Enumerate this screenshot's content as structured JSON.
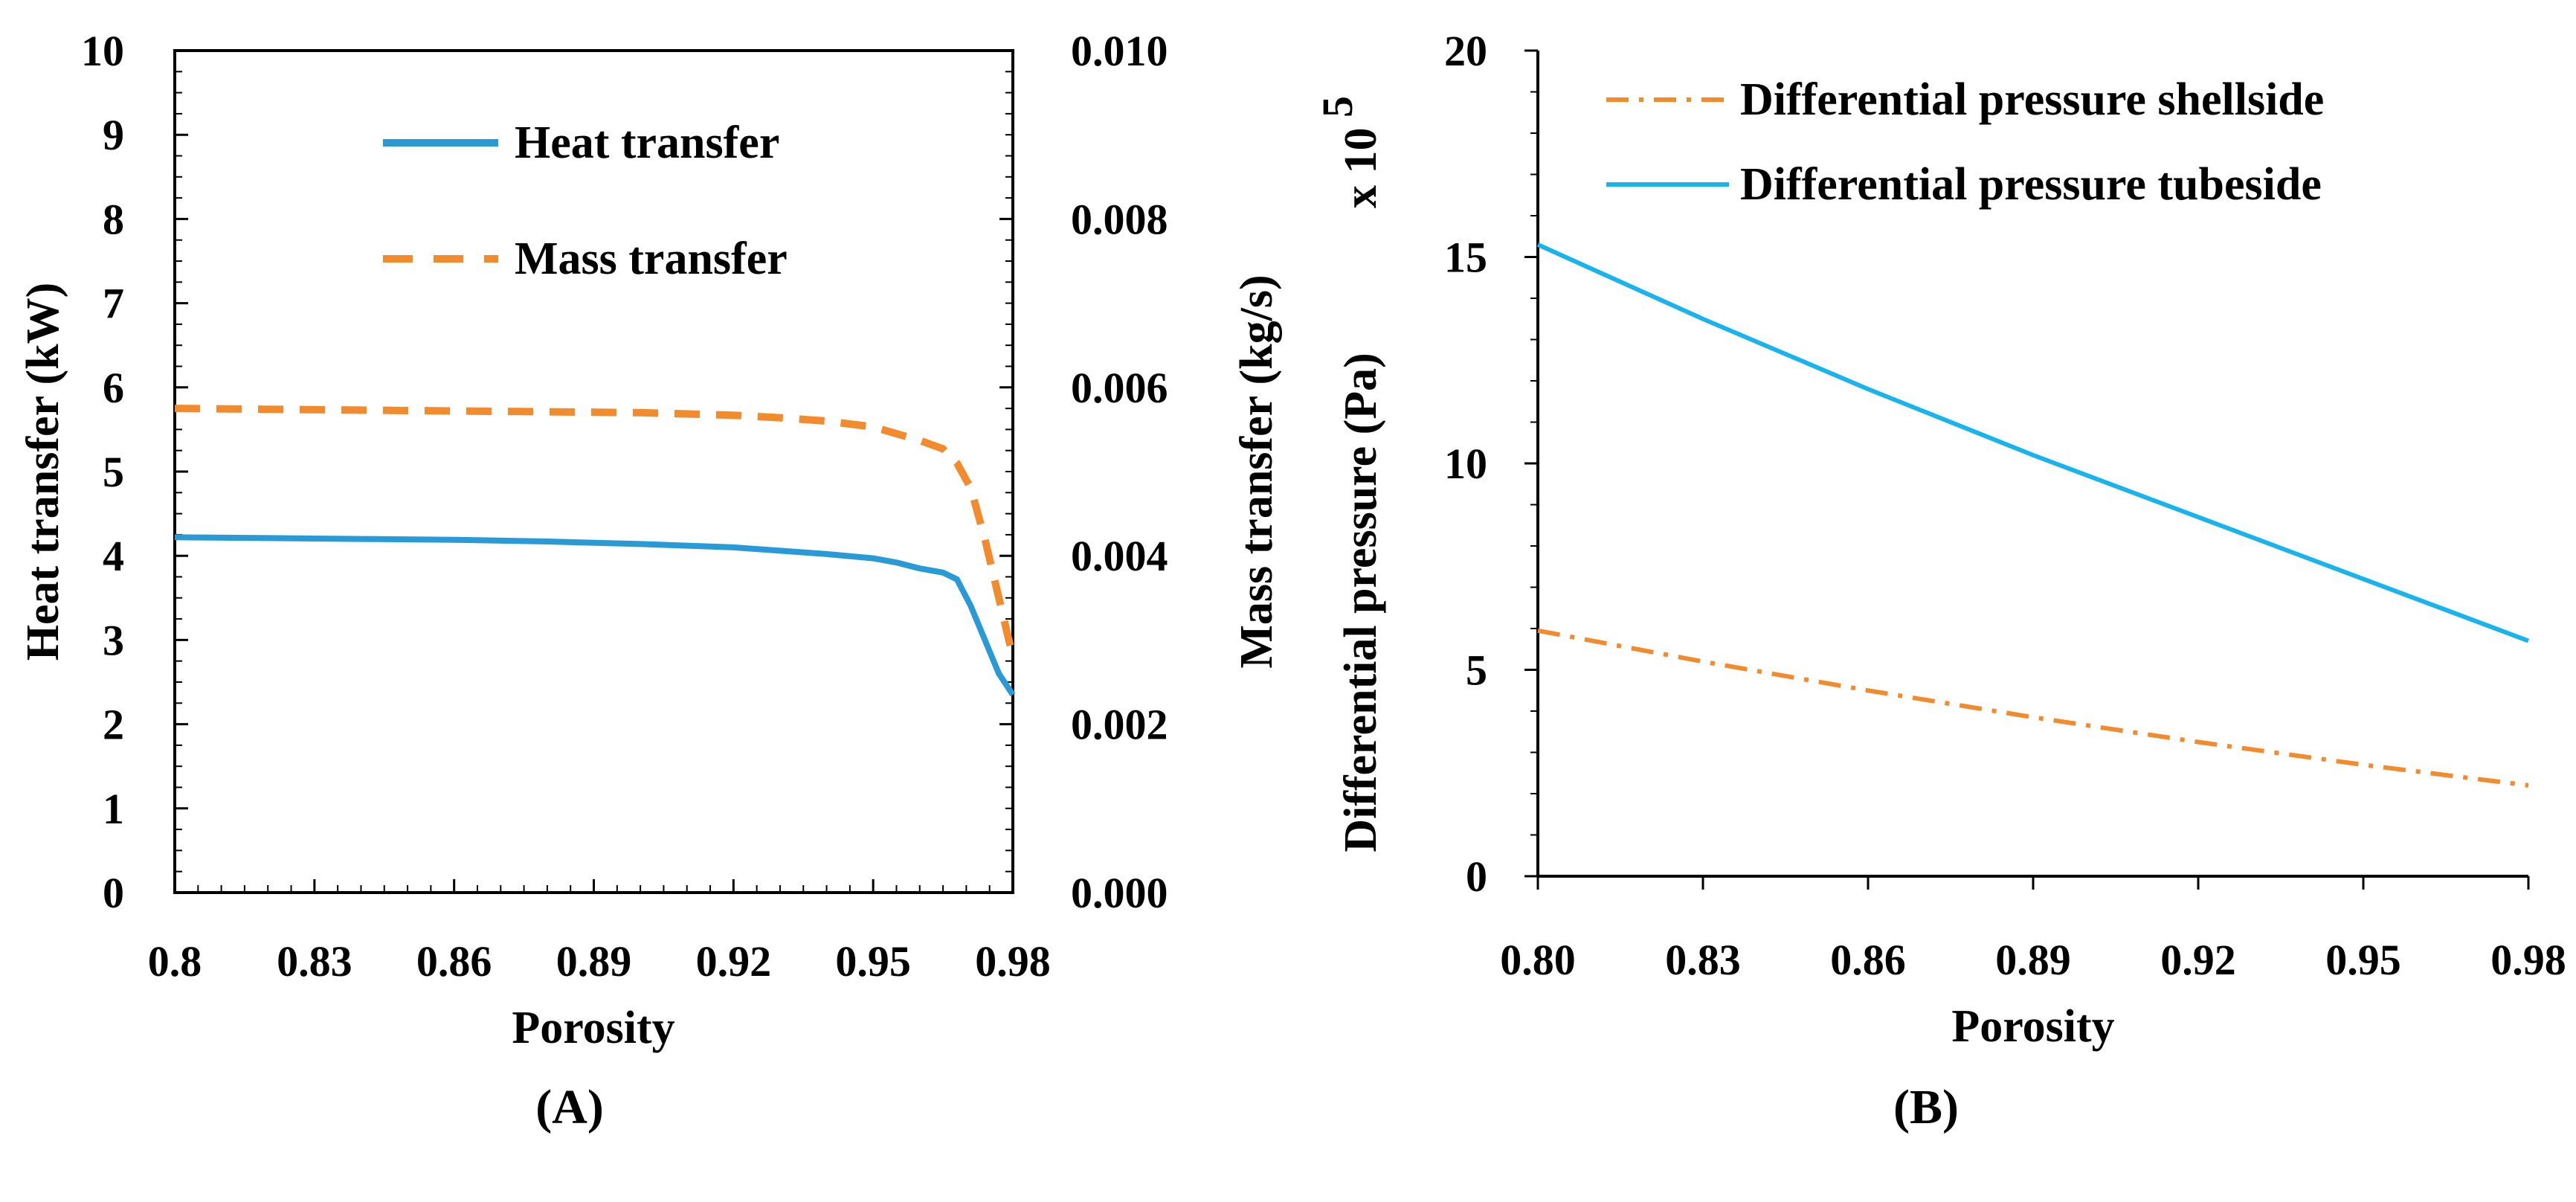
{
  "chart_data": [
    {
      "type": "line",
      "panel_label": "(A)",
      "xlabel": "Porosity",
      "ylabel": "Heat transfer (kW)",
      "y2label": "Mass transfer (kg/s)",
      "xlim": [
        0.8,
        0.98
      ],
      "ylim": [
        0,
        10
      ],
      "y2lim": [
        0,
        0.01
      ],
      "xticks": [
        0.8,
        0.83,
        0.86,
        0.89,
        0.92,
        0.95,
        0.98
      ],
      "xtick_labels": [
        "0.8",
        "0.83",
        "0.86",
        "0.89",
        "0.92",
        "0.95",
        "0.98"
      ],
      "yticks": [
        0,
        1,
        2,
        3,
        4,
        5,
        6,
        7,
        8,
        9,
        10
      ],
      "ytick_labels": [
        "0",
        "1",
        "2",
        "3",
        "4",
        "5",
        "6",
        "7",
        "8",
        "9",
        "10"
      ],
      "y2ticks": [
        0,
        0.002,
        0.004,
        0.006,
        0.008,
        0.01
      ],
      "y2tick_labels": [
        "0.000",
        "0.002",
        "0.004",
        "0.006",
        "0.008",
        "0.010"
      ],
      "legend_position": "top-center",
      "series": [
        {
          "name": "Heat transfer",
          "axis": "left",
          "color": "#2a9ad6",
          "style": "solid",
          "x": [
            0.8,
            0.82,
            0.84,
            0.86,
            0.88,
            0.9,
            0.92,
            0.93,
            0.94,
            0.95,
            0.955,
            0.96,
            0.965,
            0.968,
            0.971,
            0.974,
            0.977,
            0.98
          ],
          "y": [
            4.22,
            4.21,
            4.2,
            4.19,
            4.17,
            4.14,
            4.1,
            4.06,
            4.02,
            3.97,
            3.92,
            3.85,
            3.8,
            3.72,
            3.4,
            3.0,
            2.6,
            2.35
          ]
        },
        {
          "name": "Mass transfer",
          "axis": "right",
          "color": "#f28a2e",
          "style": "dashed",
          "x": [
            0.8,
            0.82,
            0.84,
            0.86,
            0.88,
            0.9,
            0.92,
            0.93,
            0.94,
            0.95,
            0.955,
            0.96,
            0.965,
            0.968,
            0.971,
            0.974,
            0.977,
            0.98
          ],
          "y": [
            0.00575,
            0.00574,
            0.00573,
            0.00572,
            0.00571,
            0.0057,
            0.00567,
            0.00564,
            0.0056,
            0.00553,
            0.00545,
            0.00537,
            0.00527,
            0.0051,
            0.0048,
            0.0042,
            0.0035,
            0.0028
          ]
        }
      ]
    },
    {
      "type": "line",
      "panel_label": "(B)",
      "xlabel": "Porosity",
      "ylabel": "Differential pressure (Pa)",
      "y_multiplier_label": "x 10",
      "y_multiplier_exponent": "5",
      "xlim": [
        0.8,
        0.98
      ],
      "ylim": [
        0,
        20
      ],
      "xticks": [
        0.8,
        0.83,
        0.86,
        0.89,
        0.92,
        0.95,
        0.98
      ],
      "xtick_labels": [
        "0.80",
        "0.83",
        "0.86",
        "0.89",
        "0.92",
        "0.95",
        "0.98"
      ],
      "yticks": [
        0,
        5,
        10,
        15,
        20
      ],
      "ytick_labels": [
        "0",
        "5",
        "10",
        "15",
        "20"
      ],
      "legend_position": "top-right",
      "series": [
        {
          "name": "Differential pressure shellside",
          "color": "#f28a2e",
          "style": "dash-dot",
          "x": [
            0.8,
            0.83,
            0.86,
            0.89,
            0.92,
            0.95,
            0.98
          ],
          "y": [
            5.95,
            5.2,
            4.5,
            3.85,
            3.25,
            2.7,
            2.2
          ]
        },
        {
          "name": "Differential pressure tubeside",
          "color": "#1ab3ec",
          "style": "solid",
          "x": [
            0.8,
            0.83,
            0.86,
            0.89,
            0.92,
            0.95,
            0.98
          ],
          "y": [
            15.3,
            13.5,
            11.8,
            10.2,
            8.7,
            7.2,
            5.7
          ]
        }
      ]
    }
  ]
}
